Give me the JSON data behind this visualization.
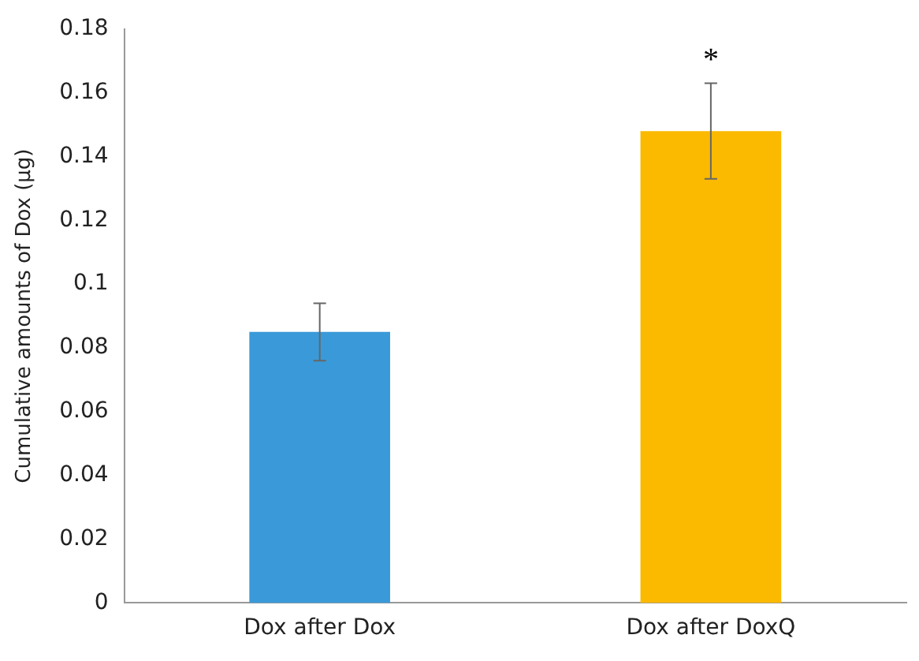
{
  "chart_data": {
    "type": "bar",
    "ylabel": "Cumulative amounts of Dox (µg)",
    "categories": [
      "Dox after Dox",
      "Dox after DoxQ"
    ],
    "values": [
      0.085,
      0.148
    ],
    "colors": [
      "#3a9ad9",
      "#fbb900"
    ],
    "errors": [
      0.009,
      0.015
    ],
    "ylim": [
      0,
      0.18
    ],
    "yticks": [
      0,
      0.02,
      0.04,
      0.06,
      0.08,
      0.1,
      0.12,
      0.14,
      0.16,
      0.18
    ],
    "grid": false,
    "legend": false,
    "annotations": [
      "*"
    ]
  }
}
